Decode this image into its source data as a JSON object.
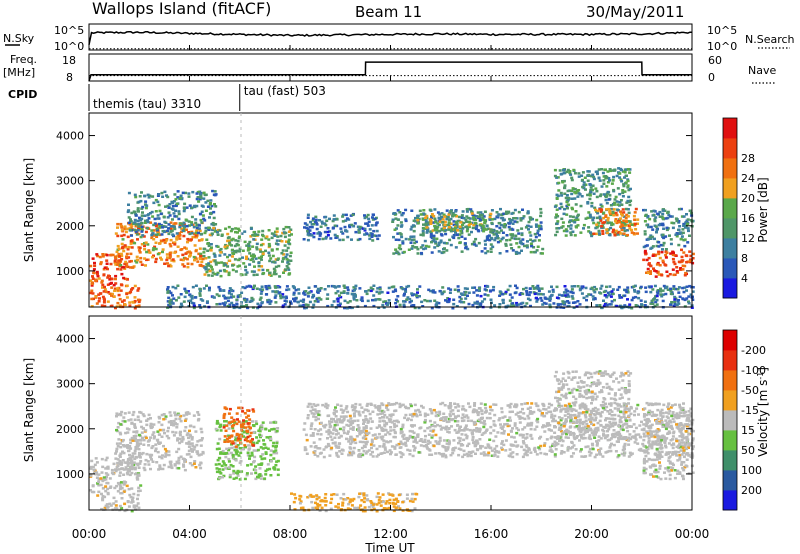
{
  "header": {
    "station": "Wallops Island (fitACF)",
    "beam": "Beam 11",
    "date": "30/May/2011"
  },
  "status_panels": {
    "nsky_label": "N.Sky",
    "nsky_ticks": [
      "10^5",
      "10^0"
    ],
    "nsearch_label": "N.Search",
    "nsearch_ticks": [
      "10^5",
      "10^0"
    ],
    "freq_label": "Freq.",
    "freq_unit": "[MHz]",
    "freq_ticks": [
      "18",
      "8"
    ],
    "nave_label": "Nave",
    "nave_ticks": [
      "60",
      "0"
    ],
    "cpid_label": "CPID",
    "cpid_segments": [
      {
        "name": "themis (tau) 3310",
        "start_hour": 0,
        "end_hour": 6
      },
      {
        "name": "tau (fast) 503",
        "start_hour": 6,
        "end_hour": 24
      }
    ]
  },
  "axes": {
    "xlabel": "Time UT",
    "x_ticks": [
      "00:00",
      "04:00",
      "08:00",
      "12:00",
      "16:00",
      "20:00",
      "00:00"
    ],
    "ylabel": "Slant Range [km]",
    "y_ticks": [
      "1000",
      "2000",
      "3000",
      "4000"
    ]
  },
  "colorbars": {
    "power": {
      "label": "Power [dB]",
      "ticks": [
        "4",
        "8",
        "12",
        "16",
        "20",
        "24",
        "28"
      ],
      "colors": [
        "#1a1ae0",
        "#2a58b8",
        "#3d7fa0",
        "#4f9668",
        "#5aa84a",
        "#f0a020",
        "#f07010",
        "#ec4010",
        "#e01010"
      ]
    },
    "velocity": {
      "label": "Velocity [m s",
      "label_sup": "-1",
      "label_end": "]",
      "ticks": [
        "200",
        "100",
        "50",
        "15",
        "-15",
        "-50",
        "-100",
        "-200"
      ],
      "colors": [
        "#1a1ae0",
        "#2a5aa0",
        "#3f8f6a",
        "#66c040",
        "#bbbbbb",
        "#f0a020",
        "#f07010",
        "#e83010",
        "#dd0000"
      ]
    }
  },
  "chart_data": [
    {
      "type": "line",
      "title": "N.Sky / N.Search",
      "x_range_hours": [
        0,
        24
      ],
      "series": [
        {
          "name": "N.Sky",
          "x": [
            0,
            0.1,
            2,
            4,
            6,
            8,
            10,
            12,
            14,
            16,
            18,
            20,
            22,
            24
          ],
          "y": [
            1,
            3.3,
            3.4,
            3.2,
            3.0,
            2.8,
            2.9,
            3.0,
            3.1,
            3.0,
            3.0,
            3.0,
            3.1,
            3.4
          ]
        },
        {
          "name": "N.Search",
          "x": [
            0,
            24
          ],
          "y": [
            0.05,
            0.05
          ]
        }
      ],
      "ylim": [
        0,
        5
      ],
      "y_scale": "log"
    },
    {
      "type": "line",
      "title": "Freq. / Nave",
      "x_range_hours": [
        0,
        24
      ],
      "series": [
        {
          "name": "Freq. [MHz]",
          "x": [
            0,
            0.08,
            11,
            11.01,
            22,
            22.01,
            24
          ],
          "y": [
            8,
            10.3,
            10.3,
            15,
            15,
            10.3,
            10.3
          ]
        },
        {
          "name": "Nave",
          "x": [
            0,
            24
          ],
          "y": [
            12,
            12
          ]
        }
      ],
      "ylim_freq": [
        8,
        18
      ],
      "ylim_nave": [
        0,
        60
      ]
    },
    {
      "type": "heatmap",
      "title": "Power [dB]",
      "x_range_hours": [
        0,
        24
      ],
      "ylim_km": [
        200,
        4500
      ],
      "color_range": [
        0,
        32
      ],
      "echo_regions": [
        {
          "start_hour": 0.0,
          "end_hour": 1.5,
          "range_from_km": 700,
          "range_to_km": 1400,
          "power_db": 26
        },
        {
          "start_hour": 0.0,
          "end_hour": 2.0,
          "range_from_km": 200,
          "range_to_km": 700,
          "power_db": 24
        },
        {
          "start_hour": 1.0,
          "end_hour": 4.5,
          "range_from_km": 1100,
          "range_to_km": 2100,
          "power_db": 22
        },
        {
          "start_hour": 1.5,
          "end_hour": 5.0,
          "range_from_km": 1800,
          "range_to_km": 2800,
          "power_db": 10
        },
        {
          "start_hour": 4.5,
          "end_hour": 8.0,
          "range_from_km": 900,
          "range_to_km": 2000,
          "power_db": 14
        },
        {
          "start_hour": 8.5,
          "end_hour": 11.5,
          "range_from_km": 1700,
          "range_to_km": 2300,
          "power_db": 8
        },
        {
          "start_hour": 3.0,
          "end_hour": 24.0,
          "range_from_km": 200,
          "range_to_km": 700,
          "power_db": 8
        },
        {
          "start_hour": 12.0,
          "end_hour": 18.0,
          "range_from_km": 1400,
          "range_to_km": 2400,
          "power_db": 10
        },
        {
          "start_hour": 13.0,
          "end_hour": 16.0,
          "range_from_km": 1900,
          "range_to_km": 2300,
          "power_db": 16
        },
        {
          "start_hour": 18.5,
          "end_hour": 21.5,
          "range_from_km": 1800,
          "range_to_km": 3300,
          "power_db": 12
        },
        {
          "start_hour": 20.0,
          "end_hour": 21.8,
          "range_from_km": 1800,
          "range_to_km": 2400,
          "power_db": 22
        },
        {
          "start_hour": 22.0,
          "end_hour": 24.0,
          "range_from_km": 900,
          "range_to_km": 1500,
          "power_db": 26
        },
        {
          "start_hour": 22.0,
          "end_hour": 24.0,
          "range_from_km": 1500,
          "range_to_km": 2400,
          "power_db": 10
        }
      ]
    },
    {
      "type": "heatmap",
      "title": "Velocity [m s-1]",
      "x_range_hours": [
        0,
        24
      ],
      "ylim_km": [
        200,
        4500
      ],
      "color_range": [
        -250,
        250
      ],
      "echo_regions": [
        {
          "start_hour": 0.0,
          "end_hour": 2.0,
          "range_from_km": 200,
          "range_to_km": 1400,
          "velocity_ms": 0
        },
        {
          "start_hour": 1.0,
          "end_hour": 4.5,
          "range_from_km": 1100,
          "range_to_km": 2400,
          "velocity_ms": 0
        },
        {
          "start_hour": 5.0,
          "end_hour": 7.5,
          "range_from_km": 900,
          "range_to_km": 2200,
          "velocity_ms": 40
        },
        {
          "start_hour": 5.3,
          "end_hour": 6.5,
          "range_from_km": 1600,
          "range_to_km": 2500,
          "velocity_ms": -120
        },
        {
          "start_hour": 8.0,
          "end_hour": 13.0,
          "range_from_km": 200,
          "range_to_km": 600,
          "velocity_ms": -40
        },
        {
          "start_hour": 8.5,
          "end_hour": 24.0,
          "range_from_km": 1400,
          "range_to_km": 2600,
          "velocity_ms": 0
        },
        {
          "start_hour": 18.5,
          "end_hour": 21.5,
          "range_from_km": 1800,
          "range_to_km": 3300,
          "velocity_ms": 0
        },
        {
          "start_hour": 22.0,
          "end_hour": 24.0,
          "range_from_km": 900,
          "range_to_km": 2400,
          "velocity_ms": 0
        }
      ]
    }
  ]
}
